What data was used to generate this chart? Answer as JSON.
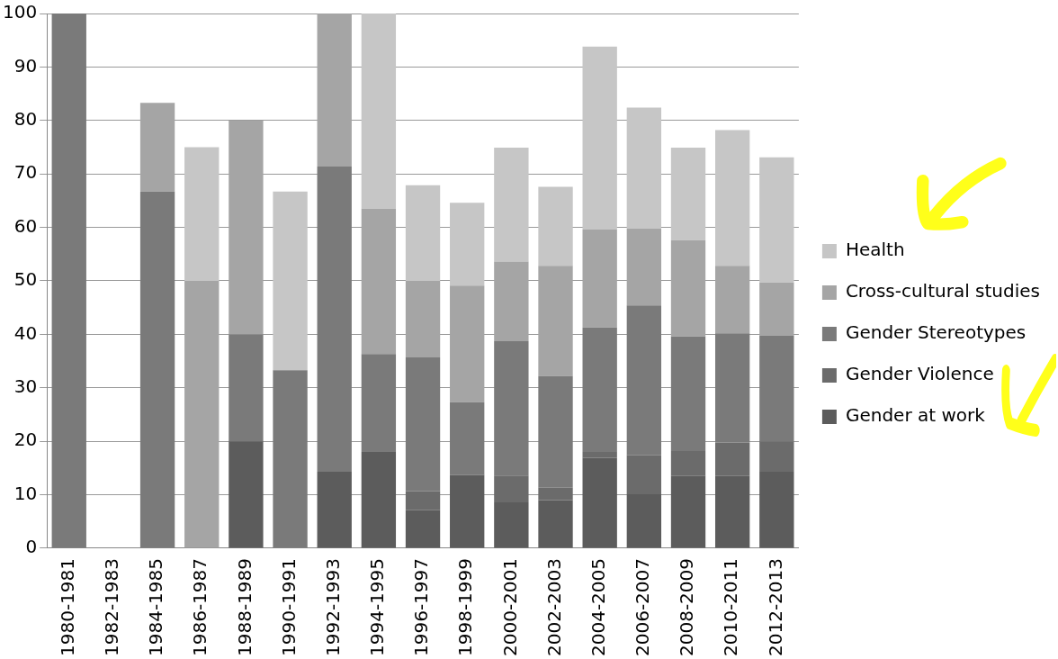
{
  "chart_data": {
    "type": "bar",
    "stacked": true,
    "categories": [
      "1980-1981",
      "1982-1983",
      "1984-1985",
      "1986-1987",
      "1988-1989",
      "1990-1991",
      "1992-1993",
      "1994-1995",
      "1996-1997",
      "1998-1999",
      "2000-2001",
      "2002-2003",
      "2004-2005",
      "2006-2007",
      "2008-2009",
      "2010-2011",
      "2012-2013"
    ],
    "series": [
      {
        "name": "Gender at work",
        "color": "#5c5c5c",
        "values": [
          null,
          null,
          null,
          null,
          20,
          null,
          14.3,
          18,
          7.1,
          13.7,
          8.6,
          9,
          16.9,
          10.1,
          13.5,
          13.5,
          14.3
        ]
      },
      {
        "name": "Gender Violence",
        "color": "#6b6b6b",
        "values": [
          null,
          null,
          null,
          null,
          null,
          null,
          null,
          null,
          3.6,
          null,
          5,
          2.3,
          1.1,
          7.3,
          4.7,
          6.3,
          5.7
        ]
      },
      {
        "name": "Gender Stereotypes",
        "color": "#7a7a7a",
        "values": [
          100,
          null,
          66.7,
          null,
          20,
          33.3,
          57.1,
          18.3,
          25,
          13.6,
          25.1,
          20.9,
          23.3,
          28,
          21.4,
          20.4,
          19.8
        ]
      },
      {
        "name": "Cross-cultural studies",
        "color": "#a5a5a5",
        "values": [
          null,
          null,
          16.6,
          50,
          40,
          null,
          28.6,
          27.2,
          14.3,
          21.8,
          14.9,
          20.6,
          18.3,
          14.4,
          18,
          12.6,
          9.9
        ]
      },
      {
        "name": "Health",
        "color": "#c6c6c6",
        "values": [
          null,
          null,
          null,
          25,
          null,
          33.4,
          null,
          36.5,
          17.9,
          15.5,
          21.3,
          14.8,
          34.2,
          22.6,
          17.3,
          25.4,
          23.4
        ]
      }
    ],
    "ylim": [
      0,
      100
    ],
    "yticks": [
      0,
      10,
      20,
      30,
      40,
      50,
      60,
      70,
      80,
      90,
      100
    ],
    "grid": "y",
    "legend": "right"
  }
}
